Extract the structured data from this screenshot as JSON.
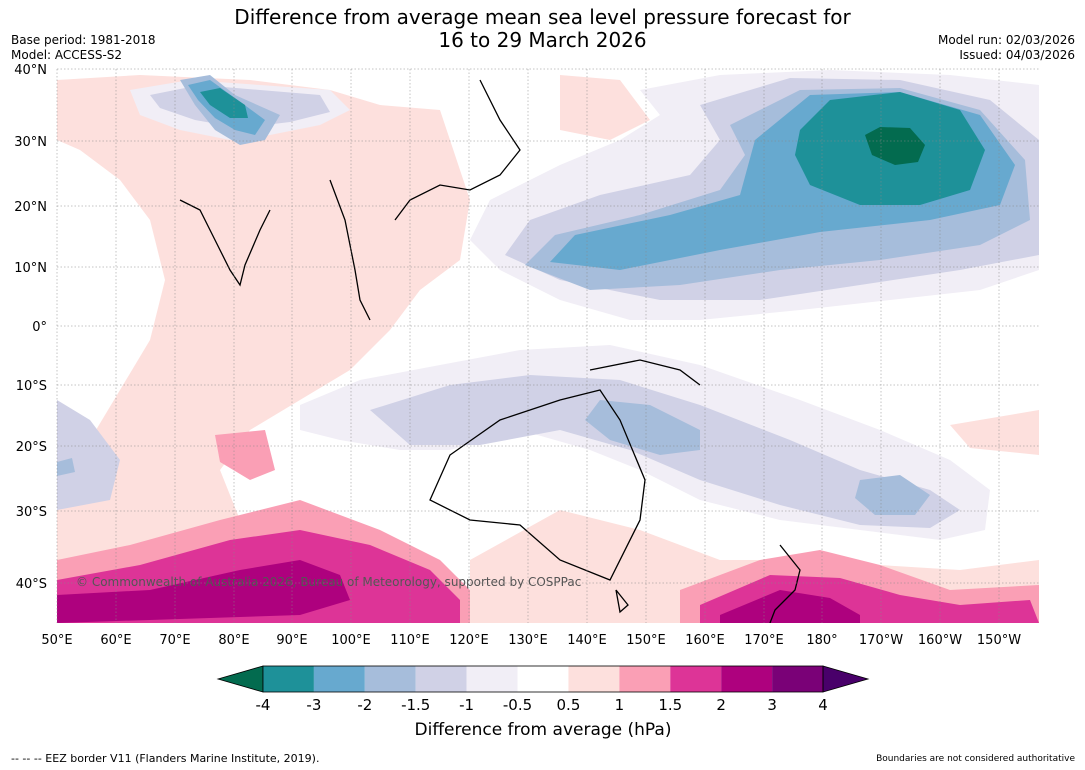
{
  "header": {
    "title_line1": "Difference from average mean sea level pressure forecast for",
    "title_line2": "16 to 29 March 2026",
    "base_period": "Base period: 1981-2018",
    "model": "Model: ACCESS-S2",
    "model_run": "Model run: 02/03/2026",
    "issued": "Issued: 04/03/2026"
  },
  "map": {
    "lat_labels": [
      "40°N",
      "30°N",
      "20°N",
      "10°N",
      "0°",
      "10°S",
      "20°S",
      "30°S",
      "40°S"
    ],
    "lon_labels": [
      "50°E",
      "60°E",
      "70°E",
      "80°E",
      "90°E",
      "100°E",
      "110°E",
      "120°E",
      "130°E",
      "140°E",
      "150°E",
      "160°E",
      "170°E",
      "180°",
      "170°W",
      "160°W",
      "150°W"
    ],
    "copyright": "© Commonwealth of Australia 2026, Bureau of Meteorology, supported by COSPPac"
  },
  "colorbar": {
    "labels": [
      "-4",
      "-3",
      "-2",
      "-1.5",
      "-1",
      "-0.5",
      "0.5",
      "1",
      "1.5",
      "2",
      "3",
      "4"
    ],
    "colors": [
      "#036b4f",
      "#1e9199",
      "#67a9cf",
      "#a6bddb",
      "#d0d1e6",
      "#f1eef6",
      "#ffffff",
      "#fde0dd",
      "#fa9fb5",
      "#dd3497",
      "#ae017e",
      "#7a0177",
      "#49006a"
    ],
    "title": "Difference from average (hPa)"
  },
  "footer": {
    "eez": "--  --  -- EEZ border V11 (Flanders Marine Institute, 2019).",
    "disclaimer": "Boundaries are not considered authoritative"
  }
}
